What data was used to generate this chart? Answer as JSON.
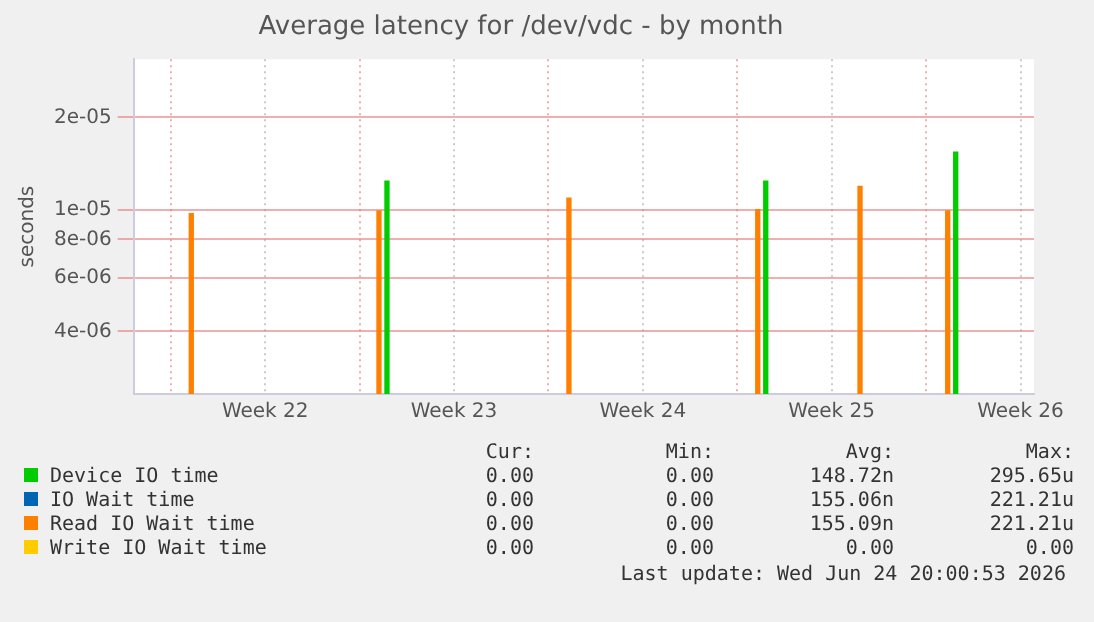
{
  "chart_data": {
    "type": "bar",
    "title": "Average latency for /dev/vdc - by month",
    "ylabel": "seconds",
    "x": [
      "2026-05-25T20:00",
      "2026-06-01T19:00",
      "2026-06-08T20:00",
      "2026-06-15T20:00",
      "2026-06-19T15:00",
      "2026-06-22T21:00"
    ],
    "series": [
      {
        "name": "Device IO time",
        "color": "#00cc00",
        "values": [
          null,
          1.24e-05,
          null,
          1.24e-05,
          null,
          1.54e-05
        ]
      },
      {
        "name": "IO Wait time",
        "color": "#0066b3",
        "values": [
          null,
          null,
          null,
          null,
          null,
          null
        ]
      },
      {
        "name": "Read IO Wait time",
        "color": "#ff8000",
        "values": [
          9.7e-06,
          9.9e-06,
          1.09e-05,
          1e-05,
          1.19e-05,
          9.9e-06
        ]
      },
      {
        "name": "Write IO Wait time",
        "color": "#ffcc00",
        "values": [
          null,
          null,
          null,
          null,
          null,
          null
        ]
      }
    ],
    "log": "y",
    "ylim": [
      2.5e-06,
      3.1e-05
    ],
    "yticks": [
      {
        "value": 4e-06,
        "label": "4e-06"
      },
      {
        "value": 6e-06,
        "label": "6e-06"
      },
      {
        "value": 8e-06,
        "label": "8e-06"
      },
      {
        "value": 1e-05,
        "label": "1e-05"
      },
      {
        "value": 2e-05,
        "label": "2e-05"
      }
    ],
    "xlim": [
      "2026-05-23T15:00",
      "2026-06-26T00:00"
    ],
    "xticks": [
      {
        "value": "2026-05-25T00:00",
        "label": null
      },
      {
        "value": "2026-05-28T12:00",
        "label": "Week 22"
      },
      {
        "value": "2026-06-01T00:00",
        "label": null
      },
      {
        "value": "2026-06-04T12:00",
        "label": "Week 23"
      },
      {
        "value": "2026-06-08T00:00",
        "label": null
      },
      {
        "value": "2026-06-11T12:00",
        "label": "Week 24"
      },
      {
        "value": "2026-06-15T00:00",
        "label": null
      },
      {
        "value": "2026-06-18T12:00",
        "label": "Week 25"
      },
      {
        "value": "2026-06-22T00:00",
        "label": null
      },
      {
        "value": "2026-06-25T12:00",
        "label": "Week 26"
      }
    ],
    "grid": true,
    "legend": "bottom",
    "annotations": [
      "Cur:",
      "Min:",
      "Avg:",
      "Max:",
      "0.00",
      "0.00",
      "148.72n",
      "295.65u",
      "0.00",
      "0.00",
      "155.06n",
      "221.21u",
      "0.00",
      "0.00",
      "155.09n",
      "221.21u",
      "0.00",
      "0.00",
      "0.00",
      "0.00",
      "Last update: Wed Jun 24 20:00:53 2026"
    ]
  }
}
